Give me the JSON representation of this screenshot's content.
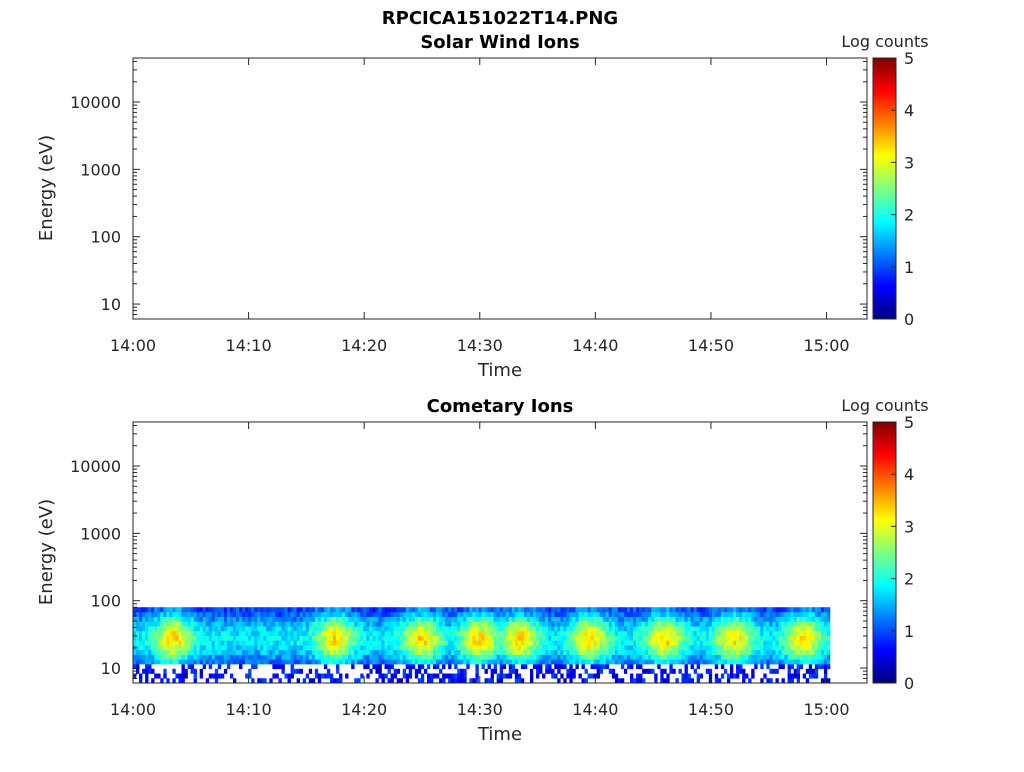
{
  "figure_title": "RPCICA151022T14.PNG",
  "colors": {
    "jet": [
      "#00007f",
      "#0000ff",
      "#007fff",
      "#00ffff",
      "#7fff7f",
      "#ffff00",
      "#ff7f00",
      "#ff0000",
      "#7f0000"
    ]
  },
  "chart_data": [
    {
      "type": "heatmap",
      "title": "Solar Wind Ions",
      "xlabel": "Time",
      "ylabel": "Energy (eV)",
      "x_ticks": [
        "14:00",
        "14:10",
        "14:20",
        "14:30",
        "14:40",
        "14:50",
        "15:00"
      ],
      "y_ticks": [
        "10",
        "100",
        "1000",
        "10000"
      ],
      "y_scale": "log",
      "ylim": [
        6,
        45000
      ],
      "x_range_minutes": [
        0,
        63.5
      ],
      "colorbar": {
        "label": "Log counts",
        "ticks": [
          "0",
          "1",
          "2",
          "3",
          "4",
          "5"
        ],
        "range": [
          0,
          5
        ],
        "colormap": "jet"
      },
      "data_present": false
    },
    {
      "type": "heatmap",
      "title": "Cometary Ions",
      "xlabel": "Time",
      "ylabel": "Energy (eV)",
      "x_ticks": [
        "14:00",
        "14:10",
        "14:20",
        "14:30",
        "14:40",
        "14:50",
        "15:00"
      ],
      "y_ticks": [
        "10",
        "100",
        "1000",
        "10000"
      ],
      "y_scale": "log",
      "ylim": [
        6,
        45000
      ],
      "x_range_minutes": [
        0,
        63.5
      ],
      "colorbar": {
        "label": "Log counts",
        "ticks": [
          "0",
          "1",
          "2",
          "3",
          "4",
          "5"
        ],
        "range": [
          0,
          5
        ],
        "colormap": "jet"
      },
      "data_present": true,
      "data_x_range_minutes": [
        0,
        60.3
      ],
      "data_energy_range_eV": [
        6,
        80
      ],
      "peak_log_counts": 3.3,
      "peak_times_minutes": [
        3.5,
        17.5,
        25,
        30,
        33.5,
        39.5,
        46,
        52,
        58
      ]
    }
  ]
}
